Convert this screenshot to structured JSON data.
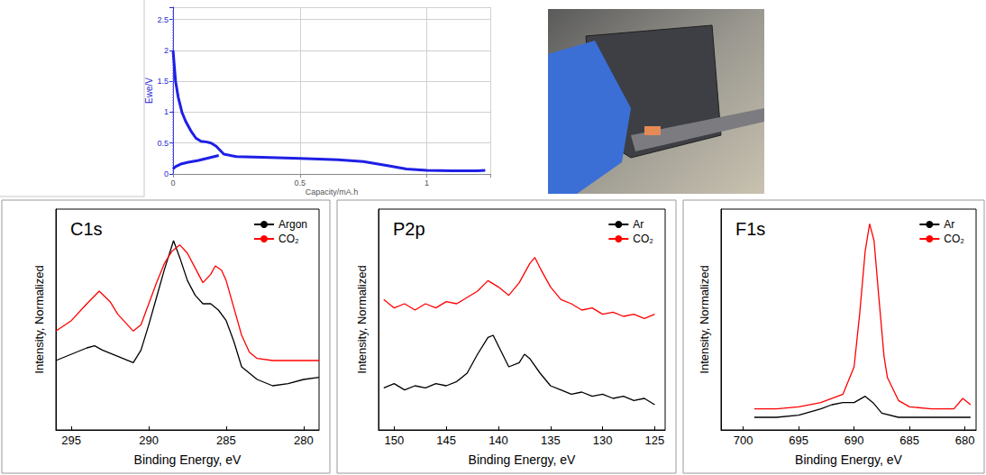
{
  "chart_data": [
    {
      "type": "line",
      "x_label": "Capacity/mA.h",
      "y_label": "Ewe/V",
      "xlim": [
        0,
        1.25
      ],
      "xticks": [
        0,
        0.5,
        1
      ],
      "ylim": [
        0,
        2.7
      ],
      "yticks": [
        0,
        0.5,
        1,
        1.5,
        2,
        2.5
      ],
      "grid": true,
      "series": [
        {
          "color": "#6a6aff",
          "line_style": "dotted",
          "x": [
            0,
            0
          ],
          "values": [
            0,
            2.65
          ]
        },
        {
          "color": "#1f1fe6",
          "line_style": "solid",
          "x": [
            0,
            0.005,
            0.01,
            0.02,
            0.035,
            0.05,
            0.07,
            0.09,
            0.11,
            0.13,
            0.15,
            0.17,
            0.2,
            0.25,
            0.35,
            0.5,
            0.65,
            0.75,
            0.85,
            0.92,
            1.0,
            1.1,
            1.2,
            1.23
          ],
          "values": [
            2.0,
            1.75,
            1.5,
            1.25,
            1.0,
            0.85,
            0.7,
            0.58,
            0.53,
            0.52,
            0.5,
            0.45,
            0.32,
            0.28,
            0.27,
            0.25,
            0.23,
            0.2,
            0.13,
            0.08,
            0.06,
            0.05,
            0.05,
            0.06
          ]
        },
        {
          "color": "#1f1fe6",
          "line_style": "solid",
          "x": [
            0,
            0.01,
            0.03,
            0.06,
            0.1,
            0.14,
            0.18
          ],
          "values": [
            0.08,
            0.12,
            0.16,
            0.19,
            0.22,
            0.26,
            0.3
          ]
        }
      ]
    },
    {
      "type": "line",
      "annotation": "C1s",
      "x_label": "Binding Energy, eV",
      "y_label": "Intensity, Normalized",
      "xlim": [
        296,
        279
      ],
      "xticks": [
        295,
        290,
        285,
        280
      ],
      "ylim": [
        0,
        1.05
      ],
      "tick_labels": "x",
      "grid": false,
      "legend": "upper right",
      "series": [
        {
          "name": "Argon",
          "color": "#000000",
          "line_style": "solid",
          "x": [
            296,
            295,
            294,
            293.5,
            293,
            292,
            291,
            290.5,
            290,
            289.5,
            289,
            288.4,
            288,
            287.5,
            287,
            286.5,
            286,
            285.5,
            285,
            284.5,
            284,
            283,
            282,
            281,
            280,
            279
          ],
          "values": [
            0.33,
            0.36,
            0.39,
            0.4,
            0.38,
            0.35,
            0.32,
            0.38,
            0.5,
            0.63,
            0.76,
            0.9,
            0.82,
            0.71,
            0.64,
            0.6,
            0.6,
            0.57,
            0.52,
            0.42,
            0.3,
            0.24,
            0.21,
            0.22,
            0.24,
            0.25
          ]
        },
        {
          "name": "CO₂",
          "color": "#ff0000",
          "line_style": "solid",
          "x": [
            296,
            295,
            294,
            293.2,
            292.5,
            292,
            291,
            290.5,
            290,
            289.5,
            289,
            288.5,
            288,
            287.5,
            287,
            286.5,
            286,
            285.7,
            285.3,
            285,
            284.5,
            284,
            283.5,
            283,
            282,
            281,
            280,
            279
          ],
          "values": [
            0.47,
            0.52,
            0.6,
            0.66,
            0.61,
            0.55,
            0.47,
            0.5,
            0.6,
            0.7,
            0.79,
            0.85,
            0.88,
            0.84,
            0.77,
            0.7,
            0.74,
            0.78,
            0.76,
            0.71,
            0.58,
            0.45,
            0.37,
            0.34,
            0.33,
            0.33,
            0.33,
            0.33
          ]
        }
      ]
    },
    {
      "type": "line",
      "annotation": "P2p",
      "x_label": "Binding Energy, eV",
      "y_label": "Intensity, Normalized",
      "xlim": [
        151.5,
        124
      ],
      "xticks": [
        150,
        145,
        140,
        135,
        130,
        125
      ],
      "ylim": [
        0,
        1.05
      ],
      "tick_labels": "x",
      "grid": false,
      "legend": "upper right",
      "series": [
        {
          "name": "Ar",
          "color": "#000000",
          "line_style": "solid",
          "x": [
            151,
            150,
            149,
            148,
            147,
            146,
            145,
            144,
            143,
            142,
            141,
            140.5,
            140,
            139,
            138,
            137.5,
            137,
            136,
            135,
            134,
            133,
            132,
            131,
            130,
            129,
            128,
            127,
            126,
            125
          ],
          "values": [
            0.2,
            0.22,
            0.19,
            0.21,
            0.2,
            0.22,
            0.21,
            0.23,
            0.27,
            0.36,
            0.44,
            0.45,
            0.4,
            0.3,
            0.32,
            0.36,
            0.34,
            0.27,
            0.21,
            0.19,
            0.17,
            0.18,
            0.16,
            0.17,
            0.15,
            0.16,
            0.14,
            0.15,
            0.12
          ]
        },
        {
          "name": "CO₂",
          "color": "#ff0000",
          "line_style": "solid",
          "x": [
            151,
            150,
            149,
            148,
            147,
            146,
            145,
            144,
            143,
            142,
            141,
            140,
            139,
            138,
            137,
            136.5,
            136,
            135,
            134,
            133,
            132,
            131,
            130,
            129,
            128,
            127,
            126,
            125
          ],
          "values": [
            0.62,
            0.58,
            0.6,
            0.57,
            0.6,
            0.58,
            0.61,
            0.6,
            0.63,
            0.66,
            0.71,
            0.68,
            0.64,
            0.7,
            0.79,
            0.82,
            0.77,
            0.68,
            0.62,
            0.6,
            0.57,
            0.58,
            0.55,
            0.56,
            0.54,
            0.55,
            0.53,
            0.55
          ]
        }
      ]
    },
    {
      "type": "line",
      "annotation": "F1s",
      "x_label": "Binding Energy, eV",
      "y_label": "Intensity, Normalized",
      "xlim": [
        702,
        679
      ],
      "xticks": [
        700,
        695,
        690,
        685,
        680
      ],
      "ylim": [
        0,
        1.05
      ],
      "tick_labels": "x",
      "grid": false,
      "legend": "upper right",
      "series": [
        {
          "name": "Ar",
          "color": "#000000",
          "line_style": "solid",
          "x": [
            699,
            697,
            695,
            693,
            692,
            691,
            690,
            689,
            688.3,
            687.5,
            686,
            683,
            680,
            679.5
          ],
          "values": [
            0.06,
            0.06,
            0.07,
            0.1,
            0.12,
            0.13,
            0.13,
            0.16,
            0.13,
            0.08,
            0.06,
            0.06,
            0.06,
            0.06
          ]
        },
        {
          "name": "CO₂",
          "color": "#ff0000",
          "line_style": "solid",
          "x": [
            699,
            697,
            695,
            693,
            691,
            690,
            689.5,
            689,
            688.6,
            688.2,
            687.8,
            687.3,
            687,
            686,
            685,
            683,
            681,
            680.2,
            679.5
          ],
          "values": [
            0.1,
            0.1,
            0.11,
            0.13,
            0.17,
            0.3,
            0.55,
            0.85,
            0.98,
            0.9,
            0.65,
            0.35,
            0.25,
            0.14,
            0.11,
            0.1,
            0.1,
            0.15,
            0.12
          ]
        }
      ]
    }
  ]
}
